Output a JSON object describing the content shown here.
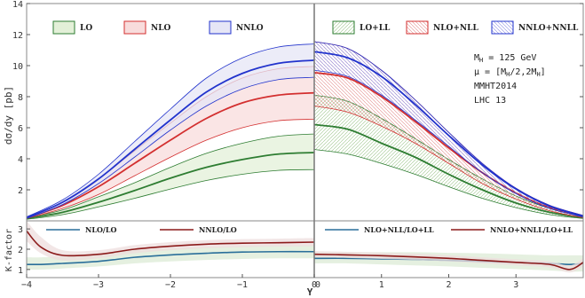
{
  "chart_data": {
    "type": "area",
    "xlabel": "Y",
    "top": {
      "ylabel": "dσ/dy [pb]",
      "ylim": [
        0,
        14
      ],
      "yticks": [
        "2",
        "4",
        "6",
        "8",
        "10",
        "12",
        "14"
      ],
      "left_panel": {
        "x": [
          -4,
          -3.5,
          -3,
          -2.5,
          -2,
          -1.5,
          -1,
          -0.5,
          0
        ],
        "series": [
          {
            "name": "LO",
            "color": "#2e7d32",
            "fill": "#e3f0d8",
            "central": [
              0.15,
              0.55,
              1.2,
              1.95,
              2.75,
              3.45,
              3.95,
              4.3,
              4.4
            ],
            "lower": [
              0.1,
              0.4,
              0.9,
              1.45,
              2.05,
              2.6,
              3.0,
              3.25,
              3.3
            ],
            "upper": [
              0.2,
              0.7,
              1.55,
              2.45,
              3.45,
              4.35,
              5.0,
              5.45,
              5.6
            ]
          },
          {
            "name": "NLO",
            "color": "#d32f2f",
            "fill": "#f8dcdc",
            "central": [
              0.2,
              1.0,
              2.2,
              3.7,
              5.2,
              6.6,
              7.6,
              8.1,
              8.25
            ],
            "lower": [
              0.15,
              0.8,
              1.7,
              2.9,
              4.1,
              5.2,
              6.0,
              6.45,
              6.55
            ],
            "upper": [
              0.25,
              1.2,
              2.7,
              4.5,
              6.3,
              8.0,
              9.2,
              9.8,
              9.95
            ]
          },
          {
            "name": "NNLO",
            "color": "#2233cc",
            "fill": "#e6e6f6",
            "central": [
              0.2,
              1.2,
              2.7,
              4.6,
              6.5,
              8.3,
              9.5,
              10.15,
              10.35
            ],
            "lower": [
              0.15,
              1.05,
              2.4,
              4.1,
              5.85,
              7.4,
              8.5,
              9.1,
              9.25
            ],
            "upper": [
              0.25,
              1.35,
              3.0,
              5.1,
              7.2,
              9.2,
              10.5,
              11.2,
              11.4
            ]
          }
        ]
      },
      "right_panel": {
        "x": [
          0,
          0.5,
          1,
          1.5,
          2,
          2.5,
          3,
          3.5,
          4
        ],
        "series": [
          {
            "name": "LO+LL",
            "color": "#2e7d32",
            "fill": "#e3f0d8",
            "central": [
              6.2,
              5.9,
              5.0,
              4.1,
              3.0,
              2.0,
              1.15,
              0.55,
              0.2
            ],
            "lower": [
              4.6,
              4.3,
              3.7,
              3.0,
              2.2,
              1.45,
              0.85,
              0.4,
              0.15
            ],
            "upper": [
              8.1,
              7.7,
              6.6,
              5.3,
              3.95,
              2.7,
              1.6,
              0.8,
              0.3
            ]
          },
          {
            "name": "NLO+NLL",
            "color": "#d32f2f",
            "fill": "#f8dcdc",
            "central": [
              9.55,
              9.2,
              8.0,
              6.4,
              4.7,
              3.1,
              1.8,
              0.85,
              0.3
            ],
            "lower": [
              7.4,
              7.0,
              6.1,
              5.0,
              3.7,
              2.4,
              1.4,
              0.65,
              0.2
            ],
            "upper": [
              11.55,
              11.1,
              9.7,
              7.8,
              5.7,
              3.7,
              2.1,
              1.0,
              0.35
            ]
          },
          {
            "name": "NNLO+NNLL",
            "color": "#2233cc",
            "fill": "#e6e6f6",
            "central": [
              10.9,
              10.5,
              9.3,
              7.5,
              5.5,
              3.6,
              2.05,
              0.95,
              0.3
            ],
            "lower": [
              9.7,
              9.3,
              8.1,
              6.5,
              4.8,
              3.1,
              1.75,
              0.8,
              0.25
            ],
            "upper": [
              11.55,
              11.1,
              9.7,
              7.8,
              5.7,
              3.7,
              2.1,
              1.0,
              0.35
            ]
          }
        ]
      },
      "annotations": [
        "M",
        "H",
        " = 125 GeV",
        "μ = [M",
        "H",
        "/2,2M",
        "H",
        "]",
        "MMHT2014",
        "LHC 13"
      ]
    },
    "bottom": {
      "ylabel": "K-factor",
      "ylim": [
        0.6,
        3.4
      ],
      "yticks": [
        "1",
        "2",
        "3"
      ],
      "left_panel": {
        "x": [
          -4,
          -3.8,
          -3.5,
          -3,
          -2.5,
          -2,
          -1.5,
          -1,
          -0.5,
          0
        ],
        "series": [
          {
            "name": "NLO/LO",
            "color": "#2a6f9a",
            "fill": "#dcebd6",
            "central": [
              1.25,
              1.25,
              1.3,
              1.4,
              1.6,
              1.72,
              1.8,
              1.86,
              1.88,
              1.88
            ],
            "lower": [
              1.0,
              1.0,
              1.05,
              1.15,
              1.3,
              1.4,
              1.47,
              1.52,
              1.55,
              1.55
            ],
            "upper": [
              1.6,
              1.6,
              1.65,
              1.75,
              1.95,
              2.05,
              2.12,
              2.17,
              2.2,
              2.2
            ]
          },
          {
            "name": "NNLO/LO",
            "color": "#8b1a1a",
            "fill": "#eedddd",
            "central": [
              2.9,
              2.1,
              1.7,
              1.75,
              2.0,
              2.15,
              2.25,
              2.3,
              2.32,
              2.35
            ],
            "lower": [
              2.4,
              1.8,
              1.45,
              1.55,
              1.8,
              1.95,
              2.05,
              2.1,
              2.13,
              2.15
            ],
            "upper": [
              3.4,
              2.6,
              1.95,
              1.95,
              2.2,
              2.35,
              2.45,
              2.5,
              2.52,
              2.55
            ]
          }
        ]
      },
      "right_panel": {
        "x": [
          0,
          0.5,
          1,
          1.5,
          2,
          2.5,
          3,
          3.5,
          3.8,
          4
        ],
        "series": [
          {
            "name": "NLO+NLL/LO+LL",
            "color": "#2a6f9a",
            "fill": "#dcebd6",
            "central": [
              1.55,
              1.55,
              1.52,
              1.5,
              1.45,
              1.4,
              1.35,
              1.3,
              1.25,
              1.3
            ],
            "lower": [
              1.3,
              1.3,
              1.25,
              1.2,
              1.15,
              1.08,
              1.02,
              0.95,
              0.9,
              0.9
            ],
            "upper": [
              1.85,
              1.85,
              1.85,
              1.85,
              1.82,
              1.8,
              1.75,
              1.7,
              1.7,
              1.7
            ]
          },
          {
            "name": "NNLO+NNLL/LO+LL",
            "color": "#8b1a1a",
            "fill": "#eedddd",
            "central": [
              1.75,
              1.72,
              1.68,
              1.62,
              1.55,
              1.45,
              1.35,
              1.25,
              1.0,
              1.35
            ],
            "lower": [
              1.6,
              1.57,
              1.52,
              1.47,
              1.4,
              1.3,
              1.2,
              1.1,
              0.85,
              1.15
            ],
            "upper": [
              1.9,
              1.87,
              1.83,
              1.78,
              1.7,
              1.6,
              1.5,
              1.4,
              1.2,
              1.55
            ]
          }
        ]
      }
    },
    "xticks_left": [
      "−4",
      "−3",
      "−2",
      "−1",
      "0"
    ],
    "xticks_right": [
      "0",
      "1",
      "2",
      "3"
    ]
  }
}
